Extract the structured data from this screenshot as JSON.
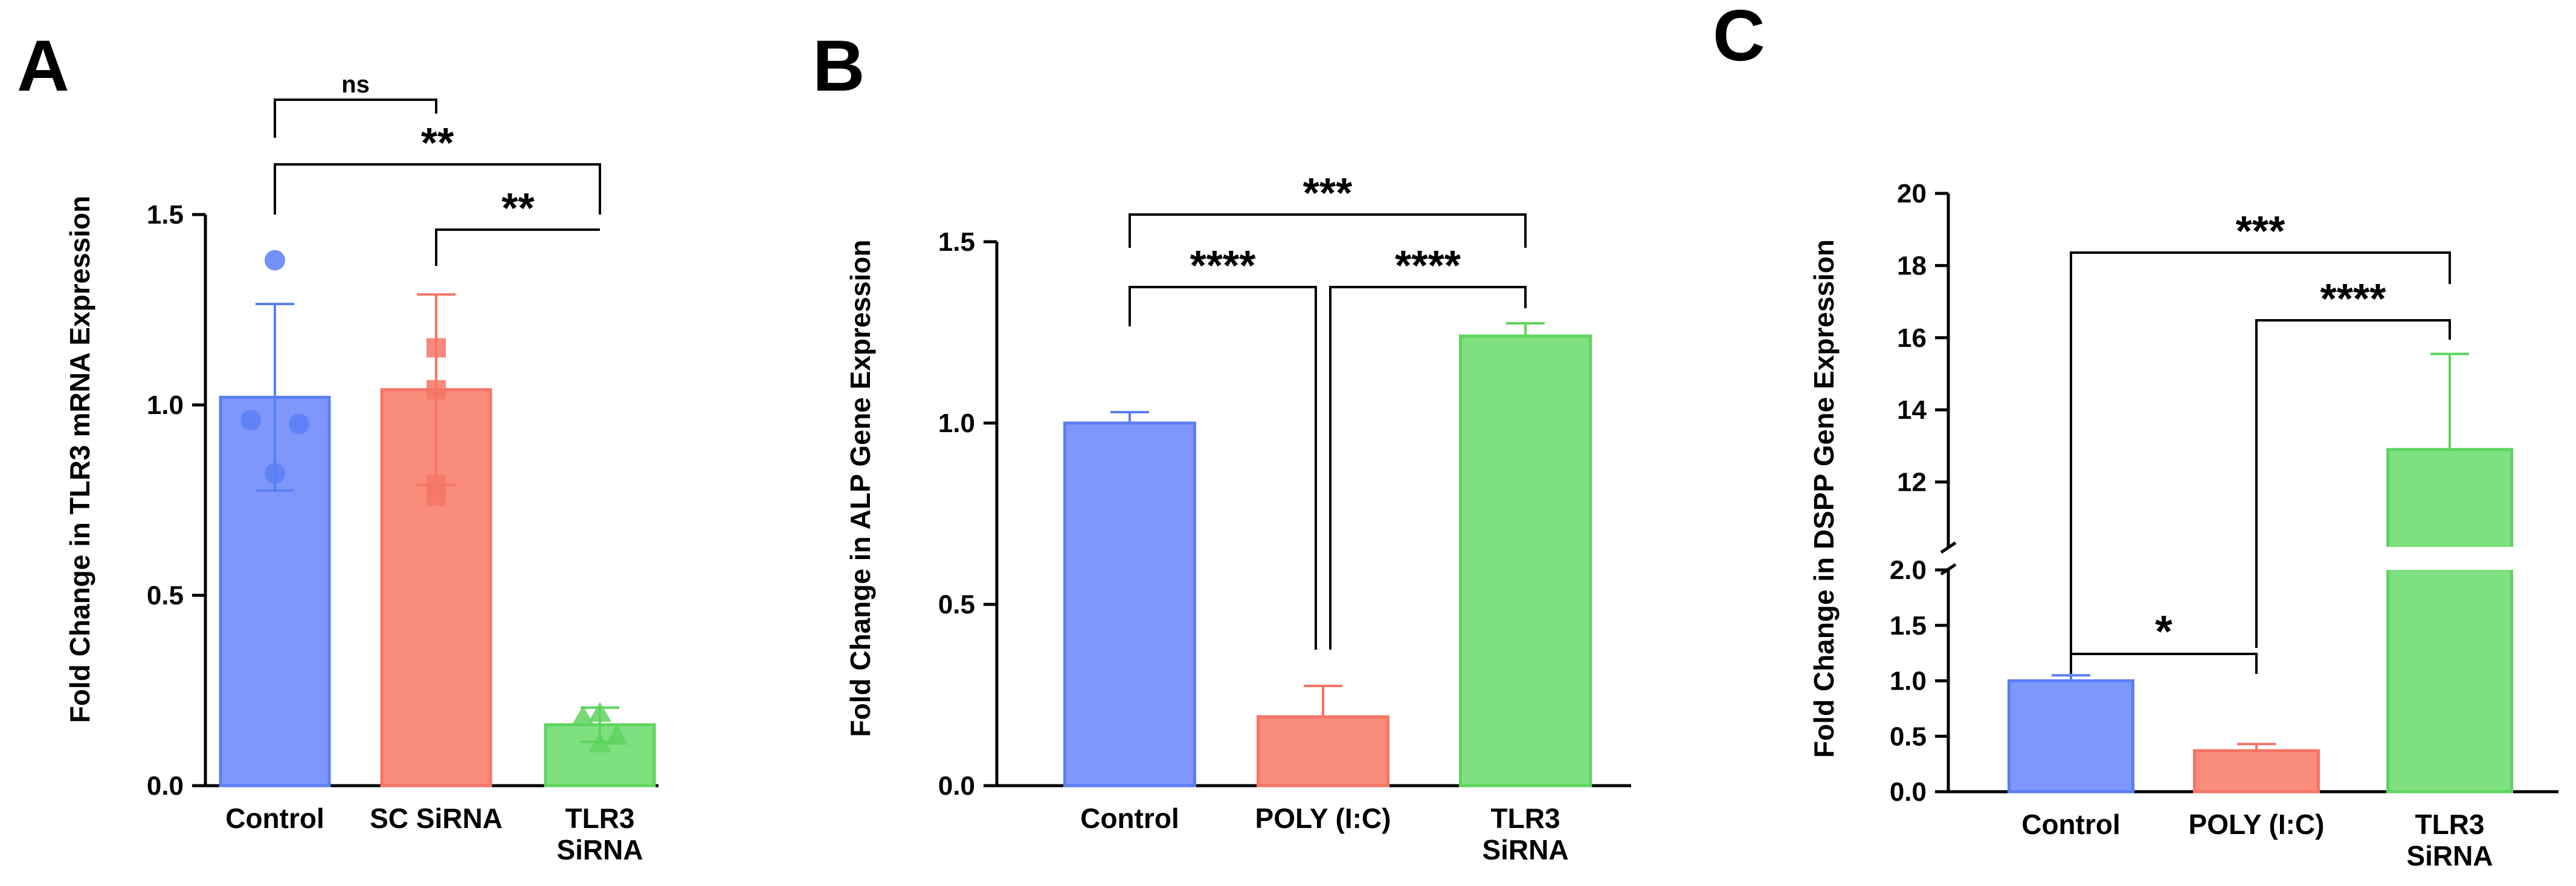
{
  "panels": [
    {
      "letter": "A",
      "ylabel": "Fold Change in TLR3 mRNA  Expression",
      "yticks": [
        "0.0",
        "0.5",
        "1.0",
        "1.5"
      ],
      "categories": [
        "Control",
        "SC SiRNA",
        "TLR3\nSiRNA"
      ],
      "significance": [
        "ns",
        "**",
        "**"
      ]
    },
    {
      "letter": "B",
      "ylabel": "Fold Change in ALP Gene Expression",
      "yticks": [
        "0.0",
        "0.5",
        "1.0",
        "1.5"
      ],
      "categories": [
        "Control",
        "POLY (I:C)",
        "TLR3\nSiRNA"
      ],
      "significance": [
        "***",
        "****",
        "****"
      ]
    },
    {
      "letter": "C",
      "ylabel": "Fold Change in DSPP Gene Expression",
      "yticks_lower": [
        "0.0",
        "0.5",
        "1.0",
        "1.5",
        "2.0"
      ],
      "yticks_upper": [
        "12",
        "14",
        "16",
        "18",
        "20"
      ],
      "categories": [
        "Control",
        "POLY (I:C)",
        "TLR3\nSiRNA"
      ],
      "significance": [
        "***",
        "****",
        "*"
      ]
    }
  ],
  "chart_data": [
    {
      "type": "bar",
      "panel": "A",
      "categories": [
        "Control",
        "SC SiRNA",
        "TLR3 SiRNA"
      ],
      "values": [
        1.02,
        1.04,
        0.16
      ],
      "error": [
        0.245,
        0.25,
        0.045
      ],
      "points": [
        [
          1.38,
          0.96,
          0.95,
          0.82
        ],
        [
          1.15,
          1.04,
          0.79,
          0.76
        ],
        [
          0.19,
          0.18,
          0.13,
          0.11
        ]
      ],
      "point_shapes": [
        "circle",
        "square",
        "triangle"
      ],
      "colors": [
        "#7f97fa",
        "#fa8c7b",
        "#7fe07f"
      ],
      "edge_colors": [
        "#5b7ef5",
        "#f57566",
        "#5ed45e"
      ],
      "ylim": [
        0,
        1.5
      ],
      "comparisons": [
        {
          "a": 0,
          "b": 1,
          "label": "ns"
        },
        {
          "a": 0,
          "b": 2,
          "label": "**"
        },
        {
          "a": 1,
          "b": 2,
          "label": "**"
        }
      ]
    },
    {
      "type": "bar",
      "panel": "B",
      "categories": [
        "Control",
        "POLY (I:C)",
        "TLR3 SiRNA"
      ],
      "values": [
        1.0,
        0.19,
        1.24
      ],
      "error": [
        0.03,
        0.085,
        0.035
      ],
      "colors": [
        "#7f97fa",
        "#fa8c7b",
        "#7fe07f"
      ],
      "edge_colors": [
        "#5b7ef5",
        "#f57566",
        "#5ed45e"
      ],
      "ylim": [
        0,
        1.5
      ],
      "comparisons": [
        {
          "a": 0,
          "b": 2,
          "label": "***"
        },
        {
          "a": 0,
          "b": 1,
          "label": "****"
        },
        {
          "a": 1,
          "b": 2,
          "label": "****"
        }
      ]
    },
    {
      "type": "bar",
      "panel": "C",
      "categories": [
        "Control",
        "POLY (I:C)",
        "TLR3 SiRNA"
      ],
      "values": [
        1.0,
        0.37,
        12.9
      ],
      "error": [
        0.05,
        0.06,
        2.65
      ],
      "colors": [
        "#7f97fa",
        "#fa8c7b",
        "#7fe07f"
      ],
      "edge_colors": [
        "#5b7ef5",
        "#f57566",
        "#5ed45e"
      ],
      "ylim_lower": [
        0,
        2
      ],
      "ylim_upper": [
        10.2,
        20
      ],
      "broken_axis": true,
      "comparisons": [
        {
          "a": 0,
          "b": 2,
          "label": "***"
        },
        {
          "a": 1,
          "b": 2,
          "label": "****"
        },
        {
          "a": 0,
          "b": 1,
          "label": "*"
        }
      ]
    }
  ]
}
